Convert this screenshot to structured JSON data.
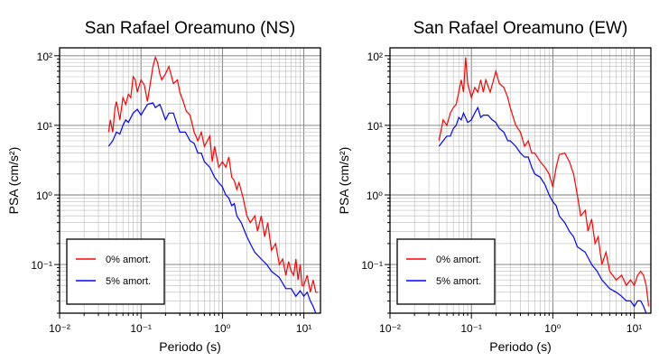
{
  "chart_data": [
    {
      "type": "line",
      "title": "San Rafael Oreamuno (NS)",
      "xlabel": "Periodo (s)",
      "ylabel": "PSA (cm/s²)",
      "xscale": "log",
      "yscale": "log",
      "xlim": [
        0.01,
        16
      ],
      "ylim": [
        0.02,
        130
      ],
      "x_ticks": [
        {
          "value": 0.01,
          "label": "10⁻²"
        },
        {
          "value": 0.1,
          "label": "10⁻¹"
        },
        {
          "value": 1,
          "label": "10⁰"
        },
        {
          "value": 10,
          "label": "10¹"
        }
      ],
      "y_ticks": [
        {
          "value": 0.1,
          "label": "10⁻¹"
        },
        {
          "value": 1,
          "label": "10⁰"
        },
        {
          "value": 10,
          "label": "10¹"
        },
        {
          "value": 100,
          "label": "10²"
        }
      ],
      "grid": true,
      "legend_position": "bottom-left",
      "series": [
        {
          "name": "0% amort.",
          "color": "#ff0000",
          "points": [
            [
              0.04,
              8
            ],
            [
              0.042,
              12
            ],
            [
              0.045,
              8
            ],
            [
              0.048,
              18
            ],
            [
              0.05,
              22
            ],
            [
              0.055,
              12
            ],
            [
              0.06,
              25
            ],
            [
              0.065,
              20
            ],
            [
              0.07,
              28
            ],
            [
              0.075,
              25
            ],
            [
              0.08,
              50
            ],
            [
              0.085,
              45
            ],
            [
              0.09,
              30
            ],
            [
              0.1,
              45
            ],
            [
              0.11,
              38
            ],
            [
              0.12,
              22
            ],
            [
              0.13,
              40
            ],
            [
              0.14,
              70
            ],
            [
              0.15,
              95
            ],
            [
              0.16,
              80
            ],
            [
              0.17,
              55
            ],
            [
              0.18,
              45
            ],
            [
              0.2,
              55
            ],
            [
              0.22,
              70
            ],
            [
              0.25,
              40
            ],
            [
              0.28,
              45
            ],
            [
              0.3,
              30
            ],
            [
              0.33,
              22
            ],
            [
              0.36,
              16
            ],
            [
              0.4,
              14
            ],
            [
              0.45,
              8
            ],
            [
              0.5,
              6
            ],
            [
              0.55,
              8
            ],
            [
              0.6,
              5
            ],
            [
              0.7,
              7
            ],
            [
              0.75,
              3
            ],
            [
              0.8,
              5
            ],
            [
              0.9,
              2.5
            ],
            [
              1,
              3
            ],
            [
              1.1,
              2.5
            ],
            [
              1.2,
              3.5
            ],
            [
              1.3,
              1.8
            ],
            [
              1.4,
              1.6
            ],
            [
              1.5,
              1.2
            ],
            [
              1.6,
              1.5
            ],
            [
              1.8,
              0.9
            ],
            [
              2,
              0.5
            ],
            [
              2.2,
              0.4
            ],
            [
              2.5,
              0.5
            ],
            [
              2.7,
              0.3
            ],
            [
              3,
              0.5
            ],
            [
              3.3,
              0.25
            ],
            [
              3.6,
              0.4
            ],
            [
              4,
              0.16
            ],
            [
              4.5,
              0.2
            ],
            [
              5,
              0.1
            ],
            [
              5.5,
              0.12
            ],
            [
              6,
              0.07
            ],
            [
              6.5,
              0.11
            ],
            [
              7,
              0.08
            ],
            [
              7.5,
              0.07
            ],
            [
              8,
              0.12
            ],
            [
              8.5,
              0.06
            ],
            [
              9,
              0.1
            ],
            [
              9.5,
              0.05
            ],
            [
              10,
              0.05
            ],
            [
              11,
              0.07
            ],
            [
              12,
              0.04
            ],
            [
              13,
              0.06
            ],
            [
              14,
              0.04
            ],
            [
              15,
              0.04
            ]
          ]
        },
        {
          "name": "5% amort.",
          "color": "#0000ff",
          "points": [
            [
              0.04,
              5
            ],
            [
              0.045,
              6
            ],
            [
              0.05,
              8
            ],
            [
              0.055,
              7.5
            ],
            [
              0.06,
              10
            ],
            [
              0.065,
              12
            ],
            [
              0.07,
              11
            ],
            [
              0.08,
              15
            ],
            [
              0.09,
              17
            ],
            [
              0.1,
              14
            ],
            [
              0.12,
              20
            ],
            [
              0.14,
              21
            ],
            [
              0.15,
              18
            ],
            [
              0.17,
              20
            ],
            [
              0.18,
              17
            ],
            [
              0.2,
              12
            ],
            [
              0.22,
              15
            ],
            [
              0.25,
              15
            ],
            [
              0.28,
              10
            ],
            [
              0.3,
              8
            ],
            [
              0.35,
              8
            ],
            [
              0.4,
              6
            ],
            [
              0.45,
              5.5
            ],
            [
              0.5,
              4
            ],
            [
              0.55,
              4
            ],
            [
              0.6,
              3
            ],
            [
              0.7,
              2.5
            ],
            [
              0.8,
              1.8
            ],
            [
              0.9,
              1.5
            ],
            [
              1,
              1.3
            ],
            [
              1.1,
              1
            ],
            [
              1.2,
              0.9
            ],
            [
              1.3,
              0.7
            ],
            [
              1.4,
              0.75
            ],
            [
              1.5,
              0.5
            ],
            [
              1.7,
              0.4
            ],
            [
              2,
              0.25
            ],
            [
              2.3,
              0.18
            ],
            [
              2.5,
              0.15
            ],
            [
              3,
              0.12
            ],
            [
              3.5,
              0.1
            ],
            [
              4,
              0.08
            ],
            [
              5,
              0.065
            ],
            [
              6,
              0.045
            ],
            [
              7,
              0.045
            ],
            [
              8,
              0.035
            ],
            [
              9,
              0.042
            ],
            [
              10,
              0.035
            ],
            [
              11,
              0.04
            ],
            [
              12,
              0.03
            ],
            [
              13,
              0.025
            ],
            [
              14,
              0.02
            ]
          ]
        }
      ]
    },
    {
      "type": "line",
      "title": "San Rafael Oreamuno (EW)",
      "xlabel": "Periodo (s)",
      "ylabel": "PSA (cm/s²)",
      "xscale": "log",
      "yscale": "log",
      "xlim": [
        0.01,
        16
      ],
      "ylim": [
        0.02,
        130
      ],
      "x_ticks": [
        {
          "value": 0.01,
          "label": "10⁻²"
        },
        {
          "value": 0.1,
          "label": "10⁻¹"
        },
        {
          "value": 1,
          "label": "10⁰"
        },
        {
          "value": 10,
          "label": "10¹"
        }
      ],
      "y_ticks": [
        {
          "value": 0.1,
          "label": "10⁻¹"
        },
        {
          "value": 1,
          "label": "10⁰"
        },
        {
          "value": 10,
          "label": "10¹"
        },
        {
          "value": 100,
          "label": "10²"
        }
      ],
      "grid": true,
      "legend_position": "bottom-left",
      "series": [
        {
          "name": "0% amort.",
          "color": "#ff0000",
          "points": [
            [
              0.04,
              6
            ],
            [
              0.045,
              12
            ],
            [
              0.05,
              10
            ],
            [
              0.055,
              15
            ],
            [
              0.06,
              18
            ],
            [
              0.065,
              20
            ],
            [
              0.07,
              30
            ],
            [
              0.075,
              45
            ],
            [
              0.08,
              30
            ],
            [
              0.085,
              95
            ],
            [
              0.09,
              40
            ],
            [
              0.1,
              25
            ],
            [
              0.11,
              35
            ],
            [
              0.12,
              30
            ],
            [
              0.13,
              45
            ],
            [
              0.14,
              30
            ],
            [
              0.15,
              45
            ],
            [
              0.17,
              30
            ],
            [
              0.2,
              60
            ],
            [
              0.22,
              40
            ],
            [
              0.25,
              35
            ],
            [
              0.28,
              25
            ],
            [
              0.3,
              18
            ],
            [
              0.35,
              10
            ],
            [
              0.4,
              8
            ],
            [
              0.45,
              5
            ],
            [
              0.5,
              6
            ],
            [
              0.55,
              4
            ],
            [
              0.6,
              4
            ],
            [
              0.7,
              3
            ],
            [
              0.8,
              2.5
            ],
            [
              0.9,
              2
            ],
            [
              1,
              1.3
            ],
            [
              1.1,
              2.5
            ],
            [
              1.2,
              3.8
            ],
            [
              1.4,
              4
            ],
            [
              1.6,
              3
            ],
            [
              1.8,
              2
            ],
            [
              2,
              1
            ],
            [
              2.2,
              0.5
            ],
            [
              2.5,
              0.6
            ],
            [
              2.7,
              0.3
            ],
            [
              3,
              0.45
            ],
            [
              3.3,
              0.2
            ],
            [
              3.6,
              0.25
            ],
            [
              4,
              0.1
            ],
            [
              4.5,
              0.15
            ],
            [
              5,
              0.08
            ],
            [
              6,
              0.06
            ],
            [
              7,
              0.07
            ],
            [
              8,
              0.05
            ],
            [
              9,
              0.06
            ],
            [
              10,
              0.05
            ],
            [
              11,
              0.07
            ],
            [
              12,
              0.08
            ],
            [
              13,
              0.07
            ],
            [
              14,
              0.05
            ],
            [
              15,
              0.025
            ]
          ]
        },
        {
          "name": "5% amort.",
          "color": "#0000ff",
          "points": [
            [
              0.04,
              5
            ],
            [
              0.045,
              6
            ],
            [
              0.05,
              7
            ],
            [
              0.055,
              7
            ],
            [
              0.06,
              9
            ],
            [
              0.065,
              10
            ],
            [
              0.07,
              13
            ],
            [
              0.075,
              12
            ],
            [
              0.08,
              15
            ],
            [
              0.09,
              11
            ],
            [
              0.1,
              12
            ],
            [
              0.11,
              15
            ],
            [
              0.12,
              18
            ],
            [
              0.13,
              13
            ],
            [
              0.14,
              14
            ],
            [
              0.16,
              14
            ],
            [
              0.18,
              12
            ],
            [
              0.2,
              11
            ],
            [
              0.22,
              9
            ],
            [
              0.25,
              8
            ],
            [
              0.28,
              6
            ],
            [
              0.3,
              6
            ],
            [
              0.35,
              5
            ],
            [
              0.4,
              4
            ],
            [
              0.45,
              3.5
            ],
            [
              0.5,
              3.5
            ],
            [
              0.55,
              2.5
            ],
            [
              0.6,
              2
            ],
            [
              0.7,
              1.8
            ],
            [
              0.8,
              1.4
            ],
            [
              0.9,
              1
            ],
            [
              1,
              0.8
            ],
            [
              1.1,
              0.7
            ],
            [
              1.2,
              0.5
            ],
            [
              1.4,
              0.4
            ],
            [
              1.6,
              0.3
            ],
            [
              1.8,
              0.25
            ],
            [
              2,
              0.18
            ],
            [
              2.5,
              0.15
            ],
            [
              3,
              0.1
            ],
            [
              3.5,
              0.08
            ],
            [
              4,
              0.06
            ],
            [
              5,
              0.045
            ],
            [
              6,
              0.04
            ],
            [
              7,
              0.035
            ],
            [
              8,
              0.03
            ],
            [
              9,
              0.03
            ],
            [
              10,
              0.025
            ],
            [
              11,
              0.03
            ],
            [
              12,
              0.03
            ],
            [
              13,
              0.025
            ],
            [
              14,
              0.02
            ]
          ]
        }
      ]
    }
  ]
}
